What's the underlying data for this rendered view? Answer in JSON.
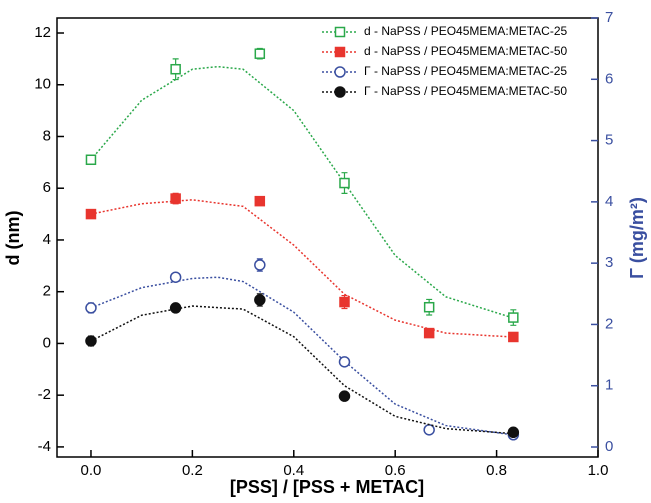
{
  "chart_data": {
    "type": "scatter",
    "xlabel": "[PSS] / [PSS + METAC]",
    "ylabel": "d (nm)",
    "y2label": "Γ (mg/m²)",
    "x": [
      0,
      0.167,
      0.333,
      0.5,
      0.667,
      0.833
    ],
    "xlim": [
      -0.067,
      1.0
    ],
    "xticks": [
      {
        "value": 0,
        "label": "0.0"
      },
      0.2,
      0.4,
      0.6,
      0.8,
      {
        "value": 1,
        "label": "1.0"
      }
    ],
    "ylim": [
      -4.39,
      12.58
    ],
    "yticks": [
      -4,
      -2,
      0,
      2,
      4,
      6,
      8,
      10,
      12
    ],
    "y2lim": [
      -0.163,
      7
    ],
    "y2ticks": [
      0,
      1,
      2,
      3,
      4,
      5,
      6,
      7
    ],
    "y2color": "#3a4fa0",
    "series": [
      {
        "name": "d - NaPSS / PEO45MEMA:METAC-25",
        "color": "#2aa84a",
        "marker": "square-open",
        "values": [
          7.1,
          10.6,
          11.2,
          6.2,
          1.4,
          1.0
        ],
        "errors": [
          0.15,
          0.4,
          0.2,
          0.4,
          0.3,
          0.3
        ],
        "fit": {
          "x": [
            0,
            0.1,
            0.2,
            0.25,
            0.3,
            0.4,
            0.5,
            0.6,
            0.7,
            0.83
          ],
          "values": [
            7.1,
            9.4,
            10.6,
            10.7,
            10.6,
            9.0,
            6.2,
            3.4,
            1.8,
            1.0
          ]
        }
      },
      {
        "name": "d - NaPSS / PEO45MEMA:METAC-50",
        "color": "#e8352e",
        "marker": "square",
        "values": [
          5.0,
          5.6,
          5.5,
          1.6,
          0.4,
          0.25
        ],
        "errors": [
          0.15,
          0.2,
          0.15,
          0.25,
          0.1,
          0.1
        ],
        "fit": {
          "x": [
            0,
            0.1,
            0.2,
            0.3,
            0.4,
            0.5,
            0.6,
            0.7,
            0.83
          ],
          "values": [
            5.0,
            5.4,
            5.55,
            5.3,
            3.8,
            1.9,
            0.9,
            0.4,
            0.25
          ]
        }
      },
      {
        "name": "Γ - NaPSS / PEO45MEMA:METAC-25",
        "color": "#3a4fa0",
        "marker": "circle-open",
        "axis": "y2",
        "values": [
          2.27,
          2.77,
          2.97,
          1.39,
          0.28,
          0.2
        ],
        "errors": [
          0.08,
          0.06,
          0.1,
          0.05,
          0.04,
          0.04
        ],
        "fit": {
          "x": [
            0,
            0.1,
            0.2,
            0.25,
            0.3,
            0.4,
            0.5,
            0.6,
            0.7,
            0.83
          ],
          "values": [
            2.27,
            2.6,
            2.75,
            2.77,
            2.7,
            2.2,
            1.4,
            0.7,
            0.35,
            0.2
          ]
        }
      },
      {
        "name": "Γ - NaPSS / PEO45MEMA:METAC-50",
        "color": "#111111",
        "marker": "circle",
        "axis": "y2",
        "values": [
          1.73,
          2.27,
          2.4,
          0.83,
          null,
          0.24
        ],
        "errors": [
          0.08,
          0.05,
          0.1,
          0.06,
          null,
          0.03
        ],
        "fit": {
          "x": [
            0,
            0.1,
            0.2,
            0.3,
            0.4,
            0.5,
            0.6,
            0.7,
            0.83
          ],
          "values": [
            1.73,
            2.15,
            2.3,
            2.25,
            1.8,
            1.0,
            0.5,
            0.3,
            0.22
          ]
        }
      }
    ]
  }
}
